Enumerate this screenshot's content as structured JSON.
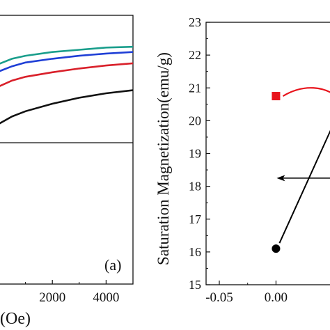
{
  "chart_data": [
    {
      "panel": "a",
      "type": "line",
      "panel_label": "(a)",
      "xlabel_visible": "(Oe)",
      "xlim": [
        0,
        5000
      ],
      "xticks": [
        2000,
        4000
      ],
      "xtick_labels": [
        "2000",
        "4000"
      ],
      "grid": false,
      "series": [
        {
          "color": "#1a9e8c",
          "x": [
            0,
            500,
            1000,
            2000,
            3000,
            4000,
            5000
          ],
          "y": [
            21.55,
            21.62,
            21.66,
            21.71,
            21.74,
            21.77,
            21.78
          ]
        },
        {
          "color": "#1f3fd6",
          "x": [
            0,
            500,
            1000,
            2000,
            3000,
            4000,
            5000
          ],
          "y": [
            21.45,
            21.52,
            21.57,
            21.62,
            21.66,
            21.69,
            21.71
          ]
        },
        {
          "color": "#d9202a",
          "x": [
            0,
            500,
            1000,
            2000,
            3000,
            4000,
            5000
          ],
          "y": [
            21.25,
            21.33,
            21.38,
            21.44,
            21.49,
            21.53,
            21.56
          ]
        },
        {
          "color": "#111111",
          "x": [
            0,
            500,
            1000,
            2000,
            3000,
            4000,
            5000
          ],
          "y": [
            20.75,
            20.85,
            20.92,
            21.02,
            21.1,
            21.16,
            21.2
          ]
        }
      ]
    },
    {
      "panel": "b",
      "type": "scatter",
      "ylabel": "Saturation Magnetization(emu/g)",
      "ylim": [
        15,
        23
      ],
      "yticks": [
        15,
        16,
        17,
        18,
        19,
        20,
        21,
        22,
        23
      ],
      "ytick_labels": [
        "15",
        "16",
        "17",
        "18",
        "19",
        "20",
        "21",
        "22",
        "23"
      ],
      "xlim": [
        -0.05,
        0.055
      ],
      "xticks": [
        -0.05,
        0.0
      ],
      "xtick_labels": [
        "-0.05",
        "0.00"
      ],
      "grid": false,
      "points": [
        {
          "x": 0.0,
          "y": 20.75,
          "marker": "square",
          "color": "#e8141c"
        },
        {
          "x": 0.0,
          "y": 16.1,
          "marker": "circle",
          "color": "#000000"
        }
      ],
      "annotations": [
        {
          "kind": "curve",
          "color": "#e8141c"
        },
        {
          "kind": "arrow-left",
          "color": "#000000",
          "y": 18.25
        },
        {
          "kind": "line",
          "color": "#000000"
        }
      ]
    }
  ]
}
